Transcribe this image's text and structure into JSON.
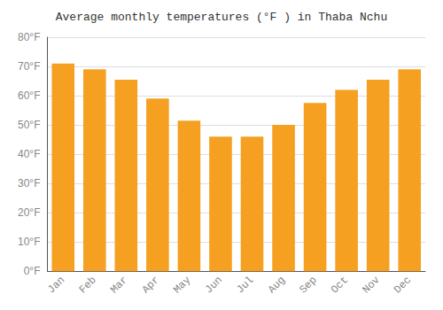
{
  "chart_data": {
    "type": "bar",
    "title": "Average monthly temperatures (°F ) in Thaba Nchu",
    "categories": [
      "Jan",
      "Feb",
      "Mar",
      "Apr",
      "May",
      "Jun",
      "Jul",
      "Aug",
      "Sep",
      "Oct",
      "Nov",
      "Dec"
    ],
    "values": [
      71,
      69,
      65.5,
      59,
      51.5,
      46,
      46,
      50,
      57.5,
      62,
      65.5,
      69
    ],
    "color": "#F5A020",
    "ylim": [
      0,
      80
    ],
    "yticks": [
      {
        "value": 0,
        "label": "0°F"
      },
      {
        "value": 10,
        "label": "10°F"
      },
      {
        "value": 20,
        "label": "20°F"
      },
      {
        "value": 30,
        "label": "30°F"
      },
      {
        "value": 40,
        "label": "40°F"
      },
      {
        "value": 50,
        "label": "50°F"
      },
      {
        "value": 60,
        "label": "60°F"
      },
      {
        "value": 70,
        "label": "70°F"
      },
      {
        "value": 80,
        "label": "80°F"
      }
    ],
    "grid": true
  }
}
